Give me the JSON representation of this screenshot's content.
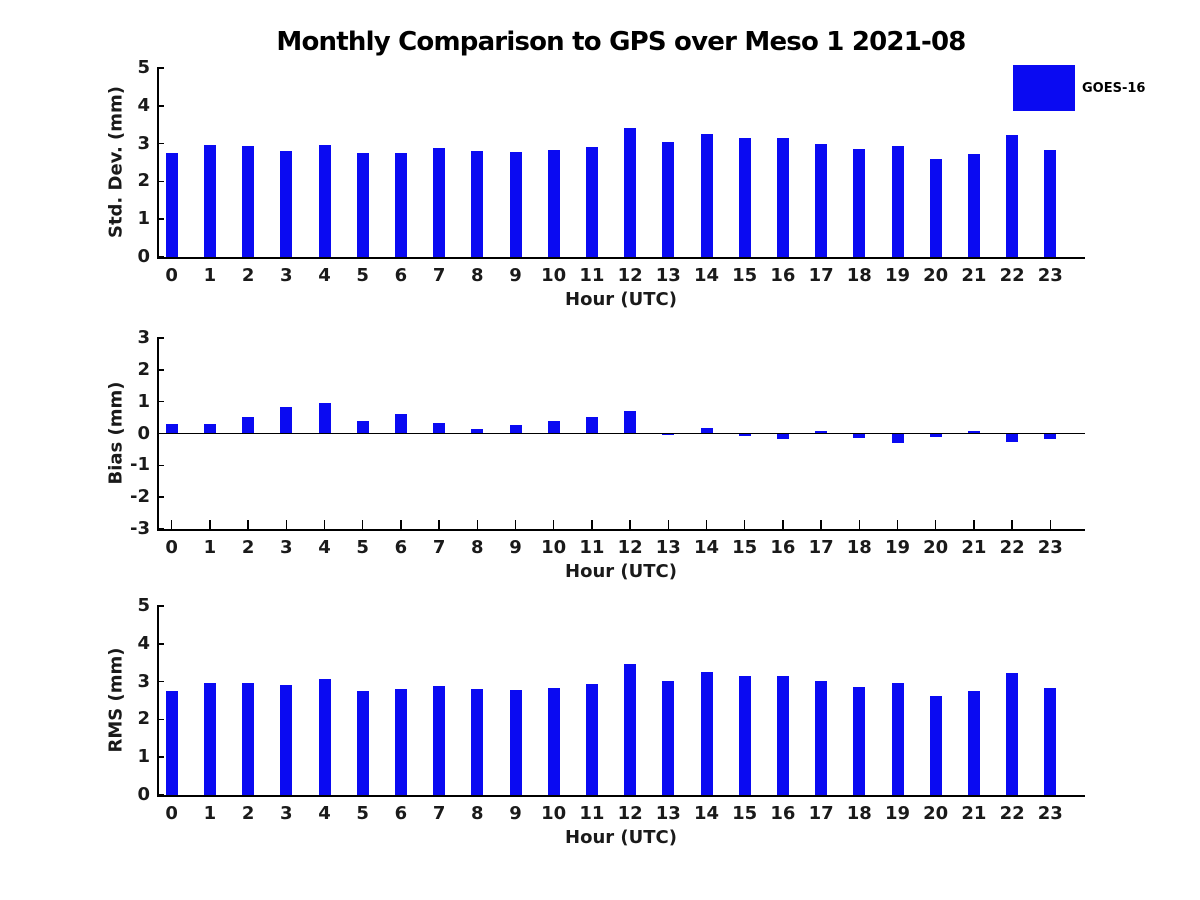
{
  "title": "Monthly Comparison to GPS over Meso 1 2021-08",
  "legend": {
    "label": "GOES-16",
    "color": "#0a0af2"
  },
  "colors": {
    "bar": "#0a0af2",
    "axis": "#000000",
    "text": "#1a1a1a"
  },
  "chart_data": [
    {
      "type": "bar",
      "ylabel": "Std. Dev. (mm)",
      "xlabel": "Hour (UTC)",
      "categories": [
        "0",
        "1",
        "2",
        "3",
        "4",
        "5",
        "6",
        "7",
        "8",
        "9",
        "10",
        "11",
        "12",
        "13",
        "14",
        "15",
        "16",
        "17",
        "18",
        "19",
        "20",
        "21",
        "22",
        "23"
      ],
      "values": [
        2.75,
        2.95,
        2.93,
        2.8,
        2.95,
        2.75,
        2.74,
        2.88,
        2.8,
        2.78,
        2.83,
        2.9,
        3.42,
        3.03,
        3.25,
        3.15,
        3.15,
        3.0,
        2.85,
        2.94,
        2.6,
        2.73,
        3.23,
        2.82
      ],
      "ylim": [
        0,
        5
      ],
      "yticks": [
        "5",
        "4",
        "3",
        "2",
        "1",
        "0"
      ],
      "legend_entry": "GOES-16",
      "grid": false
    },
    {
      "type": "bar",
      "ylabel": "Bias (mm)",
      "xlabel": "Hour (UTC)",
      "categories": [
        "0",
        "1",
        "2",
        "3",
        "4",
        "5",
        "6",
        "7",
        "8",
        "9",
        "10",
        "11",
        "12",
        "13",
        "14",
        "15",
        "16",
        "17",
        "18",
        "19",
        "20",
        "21",
        "22",
        "23"
      ],
      "values": [
        0.31,
        0.31,
        0.52,
        0.84,
        0.96,
        0.38,
        0.62,
        0.32,
        0.15,
        0.27,
        0.38,
        0.52,
        0.72,
        -0.05,
        0.18,
        -0.08,
        -0.16,
        0.08,
        -0.13,
        -0.3,
        -0.12,
        0.07,
        -0.28,
        -0.18
      ],
      "ylim": [
        -3,
        3
      ],
      "yticks": [
        "3",
        "2",
        "1",
        "0",
        "-1",
        "-2",
        "-3"
      ],
      "legend_entry": "GOES-16",
      "grid": false
    },
    {
      "type": "bar",
      "ylabel": "RMS (mm)",
      "xlabel": "Hour (UTC)",
      "categories": [
        "0",
        "1",
        "2",
        "3",
        "4",
        "5",
        "6",
        "7",
        "8",
        "9",
        "10",
        "11",
        "12",
        "13",
        "14",
        "15",
        "16",
        "17",
        "18",
        "19",
        "20",
        "21",
        "22",
        "23"
      ],
      "values": [
        2.75,
        2.96,
        2.96,
        2.91,
        3.08,
        2.76,
        2.8,
        2.88,
        2.8,
        2.78,
        2.83,
        2.93,
        3.47,
        3.02,
        3.26,
        3.16,
        3.16,
        3.01,
        2.86,
        2.95,
        2.62,
        2.75,
        3.24,
        2.83
      ],
      "ylim": [
        0,
        5
      ],
      "yticks": [
        "5",
        "4",
        "3",
        "2",
        "1",
        "0"
      ],
      "legend_entry": "GOES-16",
      "grid": false
    }
  ]
}
